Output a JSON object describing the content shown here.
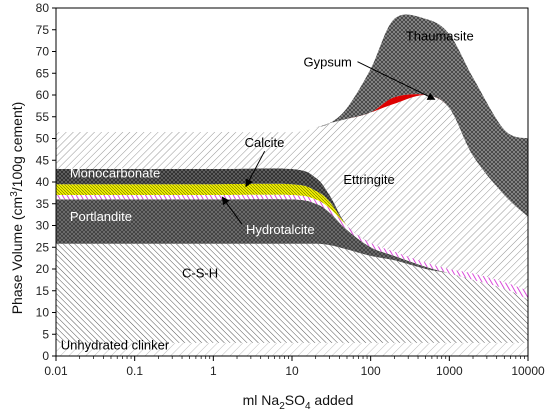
{
  "chart_data": {
    "type": "area",
    "title": "",
    "xlabel": {
      "pre": "ml Na",
      "sub1": "2",
      "mid": "SO",
      "sub2": "4",
      "post": " added"
    },
    "ylabel": {
      "pre": "Phase Volume (cm",
      "sup": "3",
      "post": "/100g cement)"
    },
    "x_scale": "log",
    "xlim": [
      0.01,
      10000
    ],
    "ylim": [
      0,
      80
    ],
    "x_ticks": [
      {
        "value": 0.01,
        "label": "0.01"
      },
      {
        "value": 0.1,
        "label": "0.1"
      },
      {
        "value": 1,
        "label": "1"
      },
      {
        "value": 10,
        "label": "10"
      },
      {
        "value": 100,
        "label": "100"
      },
      {
        "value": 1000,
        "label": "1000"
      },
      {
        "value": 10000,
        "label": "10000"
      }
    ],
    "y_ticks": [
      0,
      5,
      10,
      15,
      20,
      25,
      30,
      35,
      40,
      45,
      50,
      55,
      60,
      65,
      70,
      75,
      80
    ],
    "x": [
      0.01,
      0.1,
      1,
      10,
      20,
      30,
      50,
      100,
      200,
      500,
      1000,
      2000,
      5000,
      10000
    ],
    "series": [
      {
        "name": "Unhydrated clinker",
        "color": "#d8d8d8",
        "upper": [
          3,
          3,
          3,
          3,
          3,
          3,
          3,
          3,
          3,
          3,
          3,
          3,
          3,
          3
        ]
      },
      {
        "name": "C-S-H",
        "color": "#b0b0b0",
        "upper": [
          25.8,
          25.8,
          25.8,
          25.8,
          25.8,
          25.5,
          24.5,
          23,
          22,
          20,
          19,
          17.5,
          15.5,
          13
        ]
      },
      {
        "name": "Portlandite",
        "color": "#555555",
        "upper": [
          36,
          36,
          36,
          36,
          35,
          33,
          29,
          25,
          23,
          20.5,
          19,
          17.5,
          15.5,
          13
        ]
      },
      {
        "name": "Hydrotalcite",
        "color": "#e055e0",
        "upper": [
          37,
          37,
          37,
          37,
          36,
          34,
          30,
          26,
          24,
          21.5,
          20,
          19,
          17,
          15
        ]
      },
      {
        "name": "Calcite",
        "color": "#e8e800",
        "upper": [
          39.5,
          39.5,
          39.5,
          39.5,
          38,
          35.5,
          30,
          26,
          24,
          21.5,
          20,
          19,
          17,
          15
        ]
      },
      {
        "name": "Monocarbonate",
        "color": "#4a4a4a",
        "upper": [
          43,
          43,
          43,
          43,
          41,
          37,
          30,
          26,
          24,
          21.5,
          20,
          19,
          17,
          15
        ]
      },
      {
        "name": "Ettringite",
        "color": "#c4c4c4",
        "upper": [
          51.5,
          51.5,
          51.5,
          51.5,
          52.5,
          53.5,
          54.5,
          56,
          58,
          60,
          57,
          46,
          37,
          32
        ]
      },
      {
        "name": "Gypsum",
        "color": "#dd0000",
        "upper": [
          51.5,
          51.5,
          51.5,
          51.5,
          52.5,
          53.5,
          54.5,
          56,
          59.5,
          60,
          57,
          46,
          37,
          32
        ]
      },
      {
        "name": "Thaumasite",
        "color": "#6a6a6a",
        "upper": [
          51.5,
          51.5,
          51.5,
          51.5,
          52.5,
          53.5,
          57,
          66,
          77.5,
          77.5,
          74,
          64,
          52,
          50
        ]
      }
    ],
    "annotations": [
      {
        "text": "Unhydrated clinker",
        "x": 0.0115,
        "y": 1.5,
        "color": "#000000"
      },
      {
        "text": "C-S-H",
        "x": 0.4,
        "y": 18,
        "color": "#000000"
      },
      {
        "text": "Portlandite",
        "x": 0.015,
        "y": 31,
        "color": "#ffffff"
      },
      {
        "text": "Monocarbonate",
        "x": 0.015,
        "y": 41,
        "color": "#ffffff"
      },
      {
        "text": "Ettringite",
        "x": 45,
        "y": 39.5,
        "color": "#000000"
      },
      {
        "text": "Thaumasite",
        "x": 280,
        "y": 72.5,
        "color": "#000000"
      },
      {
        "text": "Calcite",
        "x": 2.5,
        "y": 48,
        "color": "#000000",
        "arrow_to": [
          2.6,
          39
        ]
      },
      {
        "text": "Hydrotalcite",
        "x": 2.6,
        "y": 28,
        "color": "#ffffff",
        "arrow_to": [
          1.3,
          36.5
        ]
      },
      {
        "text": "Gypsum",
        "x": 14,
        "y": 66.5,
        "color": "#000000",
        "arrow_to": [
          650,
          59
        ]
      }
    ]
  }
}
